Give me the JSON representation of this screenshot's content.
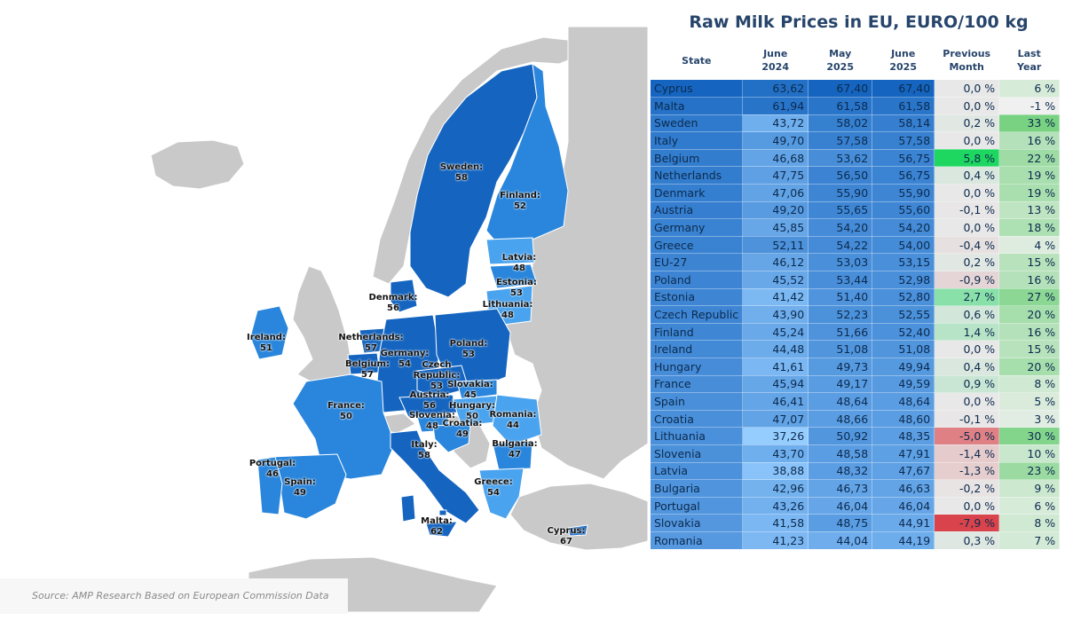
{
  "title": "Raw Milk Prices in EU, EURO/100 kg",
  "source": "Source: AMP Research Based on European Commission Data",
  "columns": {
    "state": "State",
    "june2024": [
      "June",
      "2024"
    ],
    "may2025": [
      "May",
      "2025"
    ],
    "june2025": [
      "June",
      "2025"
    ],
    "prev_month": [
      "Previous",
      "Month"
    ],
    "last_year": [
      "Last",
      "Year"
    ]
  },
  "rows": [
    {
      "state": "Cyprus",
      "june2024": "63,62",
      "may2025": "67,40",
      "june2025": "67,40",
      "prev_month": "0,0 %",
      "last_year": "6 %"
    },
    {
      "state": "Malta",
      "june2024": "61,94",
      "may2025": "61,58",
      "june2025": "61,58",
      "prev_month": "0,0 %",
      "last_year": "-1 %"
    },
    {
      "state": "Sweden",
      "june2024": "43,72",
      "may2025": "58,02",
      "june2025": "58,14",
      "prev_month": "0,2 %",
      "last_year": "33 %"
    },
    {
      "state": "Italy",
      "june2024": "49,70",
      "may2025": "57,58",
      "june2025": "57,58",
      "prev_month": "0,0 %",
      "last_year": "16 %"
    },
    {
      "state": "Belgium",
      "june2024": "46,68",
      "may2025": "53,62",
      "june2025": "56,75",
      "prev_month": "5,8 %",
      "last_year": "22 %"
    },
    {
      "state": "Netherlands",
      "june2024": "47,75",
      "may2025": "56,50",
      "june2025": "56,75",
      "prev_month": "0,4 %",
      "last_year": "19 %"
    },
    {
      "state": "Denmark",
      "june2024": "47,06",
      "may2025": "55,90",
      "june2025": "55,90",
      "prev_month": "0,0 %",
      "last_year": "19 %"
    },
    {
      "state": "Austria",
      "june2024": "49,20",
      "may2025": "55,65",
      "june2025": "55,60",
      "prev_month": "-0,1 %",
      "last_year": "13 %"
    },
    {
      "state": "Germany",
      "june2024": "45,85",
      "may2025": "54,20",
      "june2025": "54,20",
      "prev_month": "0,0 %",
      "last_year": "18 %"
    },
    {
      "state": "Greece",
      "june2024": "52,11",
      "may2025": "54,22",
      "june2025": "54,00",
      "prev_month": "-0,4 %",
      "last_year": "4 %"
    },
    {
      "state": "EU-27",
      "june2024": "46,12",
      "may2025": "53,03",
      "june2025": "53,15",
      "prev_month": "0,2 %",
      "last_year": "15 %"
    },
    {
      "state": "Poland",
      "june2024": "45,52",
      "may2025": "53,44",
      "june2025": "52,98",
      "prev_month": "-0,9 %",
      "last_year": "16 %"
    },
    {
      "state": "Estonia",
      "june2024": "41,42",
      "may2025": "51,40",
      "june2025": "52,80",
      "prev_month": "2,7 %",
      "last_year": "27 %"
    },
    {
      "state": "Czech Republic",
      "june2024": "43,90",
      "may2025": "52,23",
      "june2025": "52,55",
      "prev_month": "0,6 %",
      "last_year": "20 %"
    },
    {
      "state": "Finland",
      "june2024": "45,24",
      "may2025": "51,66",
      "june2025": "52,40",
      "prev_month": "1,4 %",
      "last_year": "16 %"
    },
    {
      "state": "Ireland",
      "june2024": "44,48",
      "may2025": "51,08",
      "june2025": "51,08",
      "prev_month": "0,0 %",
      "last_year": "15 %"
    },
    {
      "state": "Hungary",
      "june2024": "41,61",
      "may2025": "49,73",
      "june2025": "49,94",
      "prev_month": "0,4 %",
      "last_year": "20 %"
    },
    {
      "state": "France",
      "june2024": "45,94",
      "may2025": "49,17",
      "june2025": "49,59",
      "prev_month": "0,9 %",
      "last_year": "8 %"
    },
    {
      "state": "Spain",
      "june2024": "46,41",
      "may2025": "48,64",
      "june2025": "48,64",
      "prev_month": "0,0 %",
      "last_year": "5 %"
    },
    {
      "state": "Croatia",
      "june2024": "47,07",
      "may2025": "48,66",
      "june2025": "48,60",
      "prev_month": "-0,1 %",
      "last_year": "3 %"
    },
    {
      "state": "Lithuania",
      "june2024": "37,26",
      "may2025": "50,92",
      "june2025": "48,35",
      "prev_month": "-5,0 %",
      "last_year": "30 %"
    },
    {
      "state": "Slovenia",
      "june2024": "43,70",
      "may2025": "48,58",
      "june2025": "47,91",
      "prev_month": "-1,4 %",
      "last_year": "10 %"
    },
    {
      "state": "Latvia",
      "june2024": "38,88",
      "may2025": "48,32",
      "june2025": "47,67",
      "prev_month": "-1,3 %",
      "last_year": "23 %"
    },
    {
      "state": "Bulgaria",
      "june2024": "42,96",
      "may2025": "46,73",
      "june2025": "46,63",
      "prev_month": "-0,2 %",
      "last_year": "9 %"
    },
    {
      "state": "Portugal",
      "june2024": "43,26",
      "may2025": "46,04",
      "june2025": "46,04",
      "prev_month": "0,0 %",
      "last_year": "6 %"
    },
    {
      "state": "Slovakia",
      "june2024": "41,58",
      "may2025": "48,75",
      "june2025": "44,91",
      "prev_month": "-7,9 %",
      "last_year": "8 %"
    },
    {
      "state": "Romania",
      "june2024": "41,23",
      "may2025": "44,04",
      "june2025": "44,19",
      "prev_month": "0,3 %",
      "last_year": "7 %"
    }
  ],
  "map_labels": [
    {
      "name": "Sweden",
      "value": "58"
    },
    {
      "name": "Finland",
      "value": "52"
    },
    {
      "name": "Latvia",
      "value": "48"
    },
    {
      "name": "Estonia",
      "value": "53"
    },
    {
      "name": "Lithuania",
      "value": "48"
    },
    {
      "name": "Denmark",
      "value": "56"
    },
    {
      "name": "Ireland",
      "value": "51"
    },
    {
      "name": "Netherlands",
      "value": "57"
    },
    {
      "name": "Germany",
      "value": "54"
    },
    {
      "name": "Poland",
      "value": "53"
    },
    {
      "name": "Belgium",
      "value": "57"
    },
    {
      "name": "Czech Republic",
      "value": "53"
    },
    {
      "name": "Slovakia",
      "value": "45"
    },
    {
      "name": "Austria",
      "value": "56"
    },
    {
      "name": "Hungary",
      "value": "50"
    },
    {
      "name": "Slovenia",
      "value": "48"
    },
    {
      "name": "Croatia",
      "value": "49"
    },
    {
      "name": "Romania",
      "value": "44"
    },
    {
      "name": "France",
      "value": "50"
    },
    {
      "name": "Bulgaria",
      "value": "47"
    },
    {
      "name": "Italy",
      "value": "58"
    },
    {
      "name": "Portugal",
      "value": "46"
    },
    {
      "name": "Spain",
      "value": "49"
    },
    {
      "name": "Greece",
      "value": "54"
    },
    {
      "name": "Malta",
      "value": "62"
    },
    {
      "name": "Cyprus",
      "value": "67"
    }
  ],
  "colors": {
    "non_eu_land": "#c9c9c9",
    "eu_dark": "#1565c0",
    "eu_mid": "#2a86dc",
    "eu_light": "#4aa3ee",
    "title": "#27456b",
    "heat_green_strong": "#1ed760",
    "heat_red_strong": "#d9434b"
  }
}
